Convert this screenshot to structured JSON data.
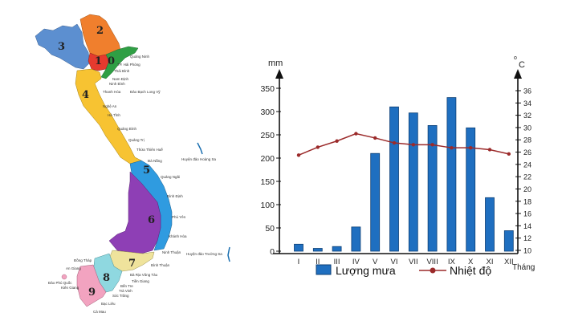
{
  "map": {
    "regions": [
      {
        "number": "1",
        "color": "#e53a2e"
      },
      {
        "number": "2",
        "color": "#f07f2d"
      },
      {
        "number": "3",
        "color": "#5c8fd0"
      },
      {
        "number": "4",
        "color": "#f7c332"
      },
      {
        "number": "5",
        "color": "#2f9be0"
      },
      {
        "number": "6",
        "color": "#8e3fb5"
      },
      {
        "number": "7",
        "color": "#efe39c"
      },
      {
        "number": "8",
        "color": "#8fd8e0"
      },
      {
        "number": "9",
        "color": "#f2a3c0"
      },
      {
        "number": "0",
        "color": "#2f9f44"
      }
    ],
    "labels": [
      "Quảng Ninh",
      "TP. Hải Phòng",
      "Thái Bình",
      "Nam Định",
      "Ninh Bình",
      "Đảo Bạch Long Vỹ",
      "Thanh Hóa",
      "Nghệ An",
      "Hà Tĩnh",
      "Quảng Bình",
      "Quảng Trị",
      "Thừa Thiên Huế",
      "Đà Nẵng",
      "Huyện đảo Hoàng Sa",
      "Quảng Ngãi",
      "Bình Định",
      "Phú Yên",
      "Khánh Hòa",
      "Ninh Thuận",
      "Huyện đảo Trường Sa",
      "Bình Thuận",
      "Bà Rịa Vũng Tàu",
      "Tiền Giang",
      "Bến Tre",
      "Trà Vinh",
      "Sóc Trăng",
      "Bạc Liêu",
      "Cà Mau",
      "Kiên Giang",
      "An Giang",
      "Đồng Tháp",
      "Đảo Phú Quốc"
    ]
  },
  "chart_data": {
    "type": "bar+line",
    "title": "",
    "categories": [
      "I",
      "II",
      "III",
      "IV",
      "V",
      "VI",
      "VII",
      "VIII",
      "IX",
      "X",
      "XI",
      "XII"
    ],
    "xlabel": "Tháng",
    "ylabel_left": "mm",
    "ylabel_right": "°C",
    "ylim_left": [
      0,
      350
    ],
    "yticks_left": [
      0,
      50,
      100,
      150,
      200,
      250,
      300,
      350
    ],
    "ylim_right": [
      10,
      36
    ],
    "yticks_right": [
      10,
      12,
      14,
      16,
      18,
      20,
      22,
      24,
      26,
      28,
      30,
      32,
      34,
      36
    ],
    "series": [
      {
        "name": "Lượng mưa",
        "type": "bar",
        "axis": "left",
        "color": "#1f6fc0",
        "values": [
          15,
          6,
          10,
          52,
          210,
          310,
          297,
          270,
          330,
          265,
          115,
          44
        ]
      },
      {
        "name": "Nhiệt độ",
        "type": "line",
        "axis": "right",
        "color": "#9b2a2a",
        "values": [
          25.5,
          26.8,
          27.8,
          29.0,
          28.3,
          27.5,
          27.2,
          27.2,
          26.7,
          26.7,
          26.4,
          25.7
        ]
      }
    ],
    "grid": false,
    "legend_position": "bottom"
  },
  "legend": {
    "rain_label": "Lượng mưa",
    "temp_label": "Nhiệt độ"
  },
  "axes": {
    "left_unit": "mm",
    "right_unit_sup": "o",
    "right_unit": "C",
    "x_unit": "Tháng"
  }
}
